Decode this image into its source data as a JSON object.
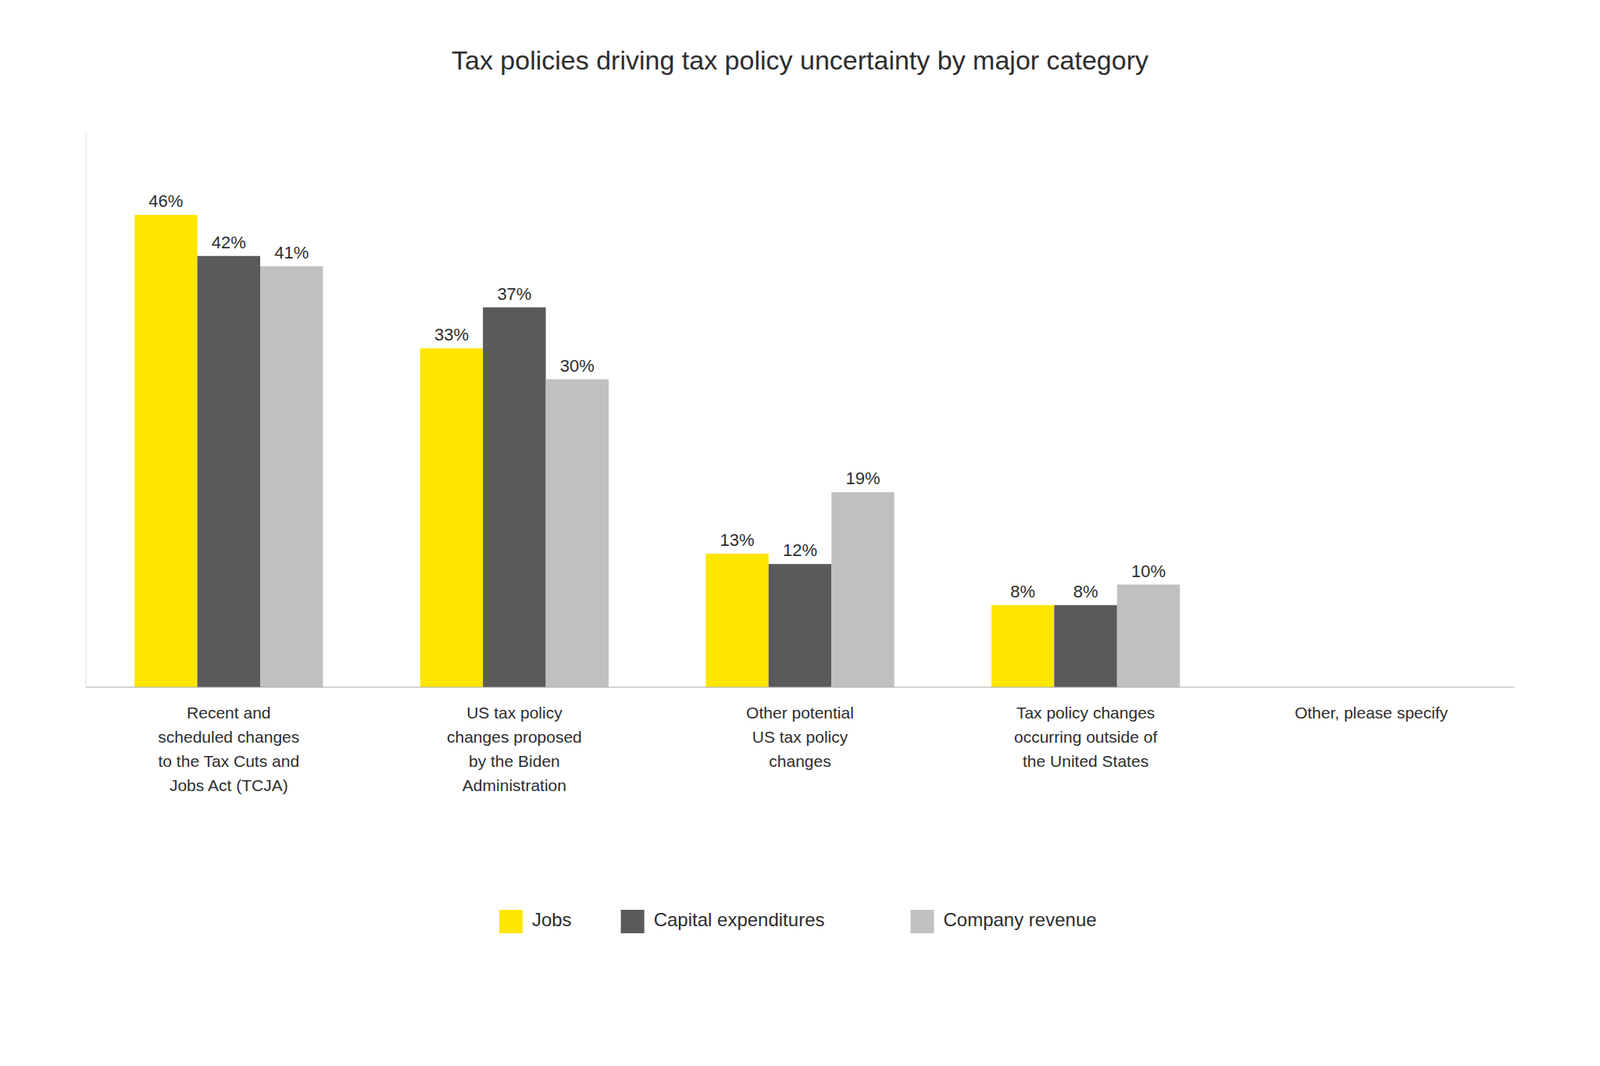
{
  "chart_data": {
    "type": "bar",
    "title": "Tax policies driving tax policy uncertainty by major category",
    "categories": [
      "Recent and\nscheduled changes\nto the Tax Cuts and\nJobs Act (TCJA)",
      "US tax policy\nchanges proposed\nby the Biden\nAdministration",
      "Other potential\nUS tax policy\nchanges",
      "Tax policy changes\noccurring outside of\nthe United States",
      "Other, please specify"
    ],
    "series": [
      {
        "name": "Jobs",
        "color": "#FFE600",
        "values": [
          46,
          33,
          13,
          8,
          0
        ],
        "value_labels": [
          "46%",
          "33%",
          "13%",
          "8%",
          null
        ]
      },
      {
        "name": "Capital expenditures",
        "color": "#5A5A5A",
        "values": [
          42,
          37,
          12,
          8,
          0
        ],
        "value_labels": [
          "42%",
          "37%",
          "12%",
          "8%",
          null
        ]
      },
      {
        "name": "Company revenue",
        "color": "#C0C0C0",
        "values": [
          41,
          30,
          19,
          10,
          0
        ],
        "value_labels": [
          "41%",
          "30%",
          "19%",
          "10%",
          null
        ]
      }
    ],
    "ylim": [
      0,
      54
    ],
    "data_labels": true,
    "tick_labels": "x",
    "grid": false,
    "legend": "bottom"
  }
}
